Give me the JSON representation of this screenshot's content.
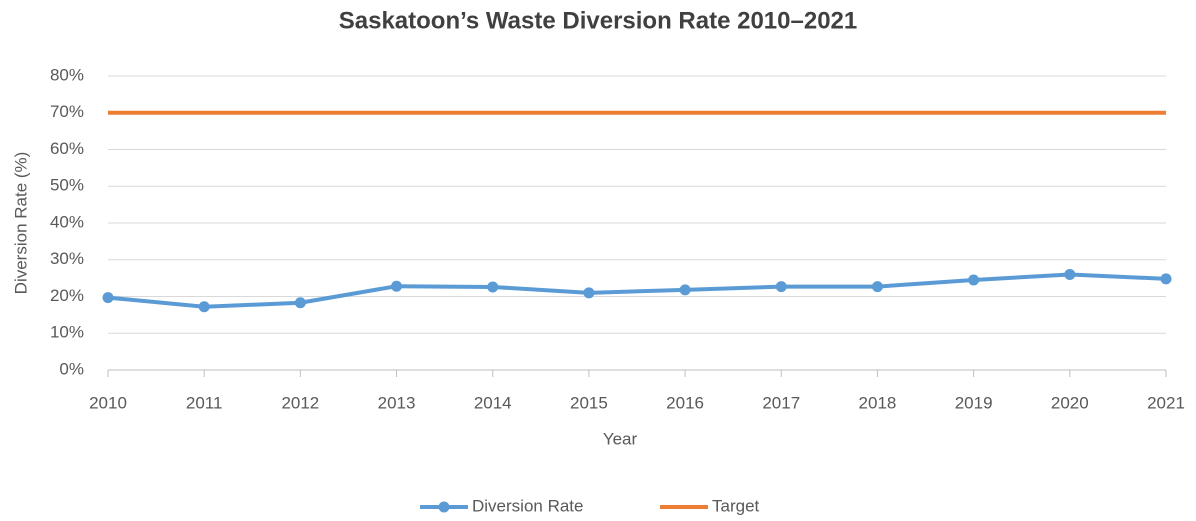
{
  "chart_data": {
    "type": "line",
    "title": "Saskatoon’s Waste Diversion Rate 2010–2021",
    "x_label": "Year",
    "y_label": "Diversion Rate (%)",
    "categories": [
      "2010",
      "2011",
      "2012",
      "2013",
      "2014",
      "2015",
      "2016",
      "2017",
      "2018",
      "2019",
      "2020",
      "2021"
    ],
    "series": [
      {
        "name": "Diversion Rate",
        "color": "#5b9bd5",
        "marker": true,
        "values": [
          19.7,
          17.2,
          18.3,
          22.8,
          22.6,
          21.0,
          21.8,
          22.7,
          22.7,
          24.5,
          26.0,
          24.8
        ]
      },
      {
        "name": "Target",
        "color": "#ed7d31",
        "marker": false,
        "values": [
          70,
          70,
          70,
          70,
          70,
          70,
          70,
          70,
          70,
          70,
          70,
          70
        ]
      }
    ],
    "ylim": [
      0,
      80
    ],
    "yticks": [
      {
        "value": 0,
        "label": "0%"
      },
      {
        "value": 10,
        "label": "10%"
      },
      {
        "value": 20,
        "label": "20%"
      },
      {
        "value": 30,
        "label": "30%"
      },
      {
        "value": 40,
        "label": "40%"
      },
      {
        "value": 50,
        "label": "50%"
      },
      {
        "value": 60,
        "label": "60%"
      },
      {
        "value": 70,
        "label": "70%"
      },
      {
        "value": 80,
        "label": "80%"
      }
    ],
    "grid": true,
    "legend": "bottom"
  }
}
